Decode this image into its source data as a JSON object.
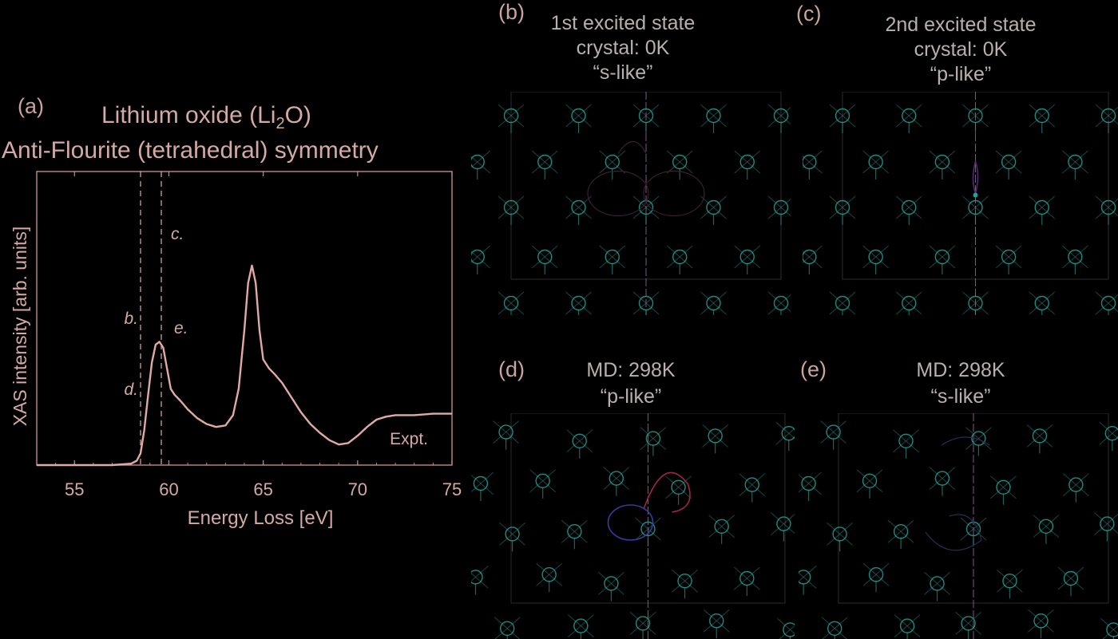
{
  "panels": {
    "a": "(a)",
    "b": "(b)",
    "c": "(c)",
    "d": "(d)",
    "e": "(e)"
  },
  "chart_title": {
    "line1_prefix": "Lithium oxide (Li",
    "line1_sub": "2",
    "line1_suffix": "O)",
    "line2": "Anti-Flourite (tetrahedral) symmetry"
  },
  "subplots": {
    "b": {
      "line1": "1st excited state",
      "line2": "crystal: 0K",
      "line3": "“s-like”"
    },
    "c": {
      "line1": "2nd excited state",
      "line2": "crystal: 0K",
      "line3": "“p-like”"
    },
    "d": {
      "line1": "MD: 298K",
      "line2": "“p-like”"
    },
    "e": {
      "line1": "MD: 298K",
      "line2": "“s-like”"
    }
  },
  "colors": {
    "curve": "#e2aaa6",
    "axis": "#c38b87",
    "text": "#d5a9a5",
    "atom": "#1fa39a",
    "bond": "#2b8f86",
    "slice_line": "#9a6fa0",
    "orbital_red": "#a32446",
    "orbital_blue": "#3a3aa0"
  },
  "chart_data": {
    "type": "line",
    "xlabel": "Energy Loss [eV]",
    "ylabel": "XAS intensity [arb. units]",
    "xlim": [
      53,
      75
    ],
    "ylim": [
      0,
      1
    ],
    "xticks": [
      "55",
      "60",
      "65",
      "70",
      "75"
    ],
    "series": [
      {
        "name": "Expt.",
        "x": [
          53,
          55,
          57,
          58,
          58.3,
          58.5,
          58.7,
          58.9,
          59.1,
          59.3,
          59.5,
          59.7,
          59.9,
          60.1,
          60.3,
          60.6,
          61,
          61.5,
          62,
          62.5,
          63,
          63.4,
          63.7,
          64,
          64.2,
          64.4,
          64.6,
          64.8,
          65,
          65.3,
          65.6,
          66,
          66.5,
          67,
          67.5,
          68,
          68.5,
          69,
          69.5,
          70,
          70.5,
          71,
          71.5,
          72,
          73,
          74,
          75
        ],
        "y": [
          0,
          0,
          0,
          0.005,
          0.015,
          0.04,
          0.12,
          0.24,
          0.35,
          0.41,
          0.42,
          0.4,
          0.33,
          0.26,
          0.24,
          0.22,
          0.19,
          0.16,
          0.14,
          0.13,
          0.135,
          0.17,
          0.26,
          0.46,
          0.62,
          0.68,
          0.62,
          0.46,
          0.36,
          0.33,
          0.31,
          0.28,
          0.23,
          0.18,
          0.14,
          0.11,
          0.085,
          0.07,
          0.075,
          0.1,
          0.13,
          0.155,
          0.165,
          0.17,
          0.17,
          0.175,
          0.175
        ]
      }
    ],
    "vlines": [
      {
        "x": 58.5,
        "labels": [
          "b.",
          "d."
        ]
      },
      {
        "x": 59.6,
        "labels": [
          "c.",
          "e."
        ]
      }
    ],
    "annotations": [
      "Expt."
    ],
    "grid": false,
    "legend": "none"
  }
}
